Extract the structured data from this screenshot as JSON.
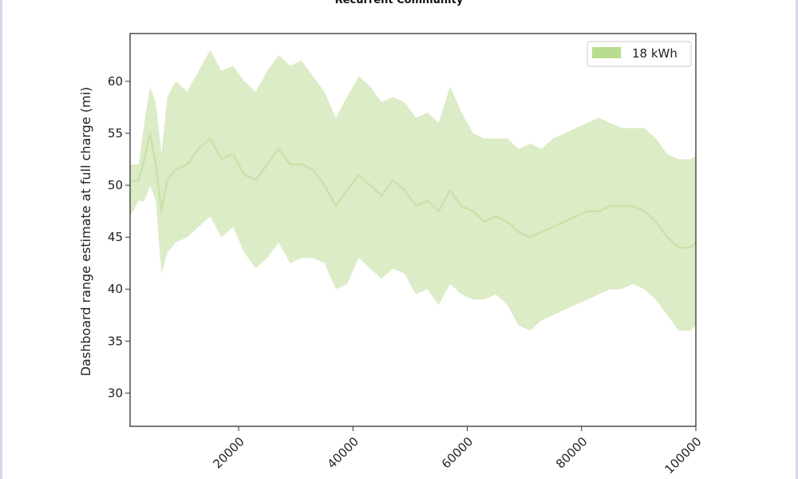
{
  "page": {
    "title": "Recurrent Community"
  },
  "chart_data": {
    "type": "area",
    "title": "",
    "xlabel": "",
    "ylabel": "Dashboard range estimate at full charge (mi)",
    "xlim": [
      1000,
      100000
    ],
    "ylim": [
      26.8,
      64.6
    ],
    "xticks": [
      20000,
      40000,
      60000,
      80000,
      100000
    ],
    "xtick_labels": [
      "20000",
      "40000",
      "60000",
      "80000",
      "100000"
    ],
    "yticks": [
      30,
      35,
      40,
      45,
      50,
      55,
      60
    ],
    "ytick_labels": [
      "30",
      "35",
      "40",
      "45",
      "50",
      "55",
      "60"
    ],
    "grid": false,
    "legend_position": "top-right",
    "colors": {
      "fill": "#dcecc7",
      "line": "#c9e3a8",
      "legend_swatch": "#b9dc8e",
      "axis": "#333333"
    },
    "series": [
      {
        "name": "18 kWh",
        "x": [
          1000,
          2500,
          3500,
          4500,
          5500,
          6500,
          7500,
          9000,
          11000,
          13000,
          15000,
          17000,
          19000,
          21000,
          23000,
          25000,
          27000,
          29000,
          31000,
          33000,
          35000,
          37000,
          39000,
          41000,
          43000,
          45000,
          47000,
          49000,
          51000,
          53000,
          55000,
          57000,
          59000,
          61000,
          63000,
          65000,
          67000,
          69000,
          71000,
          73000,
          75000,
          77000,
          79000,
          81000,
          83000,
          85000,
          87000,
          89000,
          91000,
          93000,
          95000,
          97000,
          99000,
          100000
        ],
        "y": [
          50.3,
          50.5,
          52.5,
          55.0,
          52.0,
          47.5,
          50.5,
          51.5,
          52.0,
          53.5,
          54.5,
          52.5,
          53.0,
          51.0,
          50.5,
          52.0,
          53.5,
          52.0,
          52.0,
          51.5,
          50.0,
          48.0,
          49.5,
          51.0,
          50.0,
          49.0,
          50.5,
          49.5,
          48.0,
          48.5,
          47.5,
          49.5,
          48.0,
          47.5,
          46.5,
          47.0,
          46.5,
          45.5,
          45.0,
          45.5,
          46.0,
          46.5,
          47.0,
          47.5,
          47.5,
          48.0,
          48.0,
          48.0,
          47.5,
          46.5,
          45.0,
          44.0,
          44.0,
          44.5
        ],
        "upper": [
          52.0,
          52.0,
          56.0,
          59.5,
          58.0,
          53.0,
          58.5,
          60.0,
          59.0,
          61.0,
          63.0,
          61.0,
          61.5,
          60.0,
          59.0,
          61.0,
          62.5,
          61.5,
          62.0,
          60.5,
          59.0,
          56.5,
          58.5,
          60.5,
          59.5,
          58.0,
          58.5,
          58.0,
          56.5,
          57.0,
          56.0,
          59.5,
          57.0,
          55.0,
          54.5,
          54.5,
          54.5,
          53.5,
          54.0,
          53.5,
          54.5,
          55.0,
          55.5,
          56.0,
          56.5,
          56.0,
          55.5,
          55.5,
          55.5,
          54.5,
          53.0,
          52.5,
          52.5,
          52.8
        ],
        "lower": [
          47.0,
          48.5,
          48.5,
          50.0,
          48.5,
          41.5,
          43.5,
          44.5,
          45.0,
          46.0,
          47.0,
          45.0,
          46.0,
          43.5,
          42.0,
          43.0,
          44.5,
          42.5,
          43.0,
          43.0,
          42.5,
          40.0,
          40.5,
          43.0,
          42.0,
          41.0,
          42.0,
          41.5,
          39.5,
          40.0,
          38.5,
          40.5,
          39.5,
          39.0,
          39.0,
          39.5,
          38.5,
          36.5,
          36.0,
          37.0,
          37.5,
          38.0,
          38.5,
          39.0,
          39.5,
          40.0,
          40.0,
          40.5,
          40.0,
          39.0,
          37.5,
          36.0,
          36.0,
          36.5
        ]
      }
    ]
  }
}
